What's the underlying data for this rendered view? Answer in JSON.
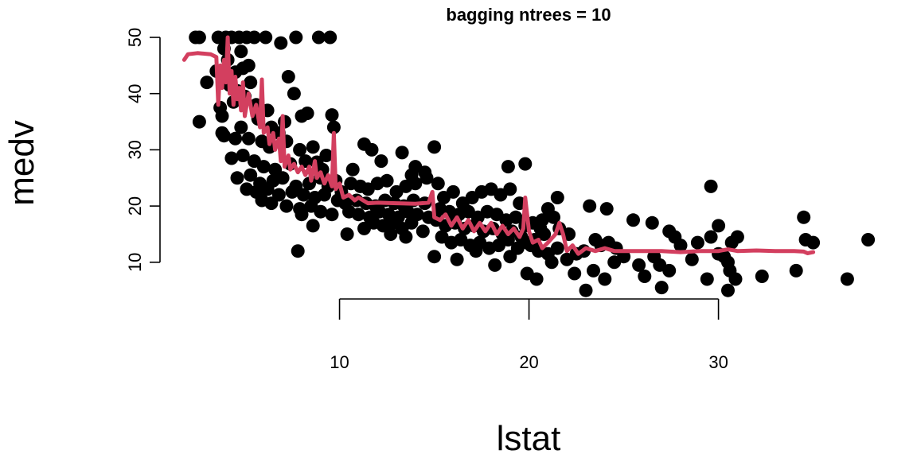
{
  "chart_data": {
    "type": "scatter",
    "title": "bagging ntrees =  10",
    "xlabel": "lstat",
    "ylabel": "medv",
    "xlim": [
      1.7,
      38
    ],
    "ylim": [
      4.6,
      50
    ],
    "x_ticks": [
      10,
      20,
      30
    ],
    "y_ticks": [
      10,
      20,
      30,
      40,
      50
    ],
    "grid": false,
    "legend": "none",
    "point_color": "#000000",
    "line_color": "#d33f5f",
    "points": [
      [
        2.4,
        50
      ],
      [
        2.6,
        50
      ],
      [
        3.6,
        50
      ],
      [
        4.0,
        50
      ],
      [
        4.3,
        50
      ],
      [
        4.7,
        50
      ],
      [
        5.1,
        50
      ],
      [
        5.5,
        50
      ],
      [
        6.1,
        50
      ],
      [
        7.7,
        50
      ],
      [
        8.9,
        50
      ],
      [
        9.5,
        50
      ],
      [
        3.9,
        48
      ],
      [
        4.8,
        47.5
      ],
      [
        4.1,
        46
      ],
      [
        5.2,
        45
      ],
      [
        6.9,
        49
      ],
      [
        3.5,
        44
      ],
      [
        4.5,
        43.8
      ],
      [
        4.9,
        44.5
      ],
      [
        5.3,
        42
      ],
      [
        7.3,
        43
      ],
      [
        3.0,
        42
      ],
      [
        4.2,
        41.5
      ],
      [
        4.6,
        40.5
      ],
      [
        5.0,
        39.5
      ],
      [
        3.7,
        37.5
      ],
      [
        4.4,
        38.5
      ],
      [
        5.6,
        38
      ],
      [
        6.2,
        37
      ],
      [
        7.6,
        40
      ],
      [
        8.0,
        36
      ],
      [
        8.3,
        36.5
      ],
      [
        2.6,
        35
      ],
      [
        3.8,
        36
      ],
      [
        4.8,
        34
      ],
      [
        5.7,
        35.5
      ],
      [
        6.4,
        34
      ],
      [
        6.8,
        33
      ],
      [
        7.1,
        35
      ],
      [
        9.6,
        36.2
      ],
      [
        9.7,
        34
      ],
      [
        3.8,
        33
      ],
      [
        4.5,
        32
      ],
      [
        5.2,
        32
      ],
      [
        5.9,
        31.5
      ],
      [
        6.3,
        30.5
      ],
      [
        7.2,
        31.5
      ],
      [
        7.9,
        30
      ],
      [
        8.6,
        30.5
      ],
      [
        9.3,
        29
      ],
      [
        3.9,
        32.5
      ],
      [
        4.3,
        28.5
      ],
      [
        4.9,
        29
      ],
      [
        5.5,
        28
      ],
      [
        6.0,
        27
      ],
      [
        6.6,
        26.5
      ],
      [
        7.4,
        27.5
      ],
      [
        8.2,
        28
      ],
      [
        8.8,
        27.8
      ],
      [
        9.1,
        26.5
      ],
      [
        4.6,
        25
      ],
      [
        5.3,
        25.5
      ],
      [
        5.8,
        24
      ],
      [
        6.5,
        24.5
      ],
      [
        7.0,
        25
      ],
      [
        7.7,
        23.5
      ],
      [
        8.4,
        24
      ],
      [
        9.0,
        25
      ],
      [
        9.4,
        23.5
      ],
      [
        9.8,
        24.5
      ],
      [
        5.1,
        23
      ],
      [
        5.6,
        22.5
      ],
      [
        6.2,
        23
      ],
      [
        6.8,
        22
      ],
      [
        7.5,
        22.5
      ],
      [
        8.1,
        22
      ],
      [
        8.7,
        21.5
      ],
      [
        9.2,
        22
      ],
      [
        9.9,
        21
      ],
      [
        5.9,
        21
      ],
      [
        6.4,
        20.5
      ],
      [
        7.2,
        20
      ],
      [
        7.9,
        19.5
      ],
      [
        8.5,
        20
      ],
      [
        9.0,
        19
      ],
      [
        9.6,
        18.5
      ],
      [
        8.0,
        18.5
      ],
      [
        8.6,
        16.5
      ],
      [
        7.8,
        12
      ],
      [
        10.1,
        22.5
      ],
      [
        10.6,
        24
      ],
      [
        11.1,
        23.5
      ],
      [
        11.5,
        23
      ],
      [
        12.0,
        24
      ],
      [
        12.5,
        24.5
      ],
      [
        13.0,
        22.5
      ],
      [
        13.5,
        23.5
      ],
      [
        14.0,
        24
      ],
      [
        14.6,
        25
      ],
      [
        10.3,
        20.5
      ],
      [
        10.9,
        21
      ],
      [
        11.4,
        20.5
      ],
      [
        11.9,
        20
      ],
      [
        12.4,
        21
      ],
      [
        12.9,
        20.5
      ],
      [
        13.4,
        20
      ],
      [
        13.9,
        21
      ],
      [
        14.5,
        20.5
      ],
      [
        10.5,
        19
      ],
      [
        11.0,
        18.5
      ],
      [
        11.6,
        18
      ],
      [
        12.1,
        19
      ],
      [
        12.6,
        18.5
      ],
      [
        13.1,
        18
      ],
      [
        13.6,
        19
      ],
      [
        14.1,
        18.5
      ],
      [
        14.7,
        18
      ],
      [
        10.4,
        15
      ],
      [
        11.3,
        16
      ],
      [
        11.8,
        17
      ],
      [
        12.3,
        16.5
      ],
      [
        12.8,
        17
      ],
      [
        13.3,
        16
      ],
      [
        13.8,
        17
      ],
      [
        14.4,
        15.5
      ],
      [
        12.7,
        15
      ],
      [
        13.5,
        14.5
      ],
      [
        11.3,
        31
      ],
      [
        11.7,
        30
      ],
      [
        12.2,
        28
      ],
      [
        13.3,
        29.5
      ],
      [
        14.0,
        27
      ],
      [
        14.5,
        26
      ],
      [
        15.0,
        30.5
      ],
      [
        10.7,
        26.5
      ],
      [
        13.8,
        25.5
      ],
      [
        15.2,
        24
      ],
      [
        15.5,
        21.5
      ],
      [
        16.0,
        22.5
      ],
      [
        16.5,
        20.5
      ],
      [
        17.0,
        21.5
      ],
      [
        17.5,
        22.5
      ],
      [
        18.0,
        23
      ],
      [
        18.5,
        22
      ],
      [
        19.0,
        23
      ],
      [
        19.5,
        20.5
      ],
      [
        15.3,
        19.5
      ],
      [
        15.8,
        19
      ],
      [
        16.3,
        18.5
      ],
      [
        16.8,
        19
      ],
      [
        17.3,
        18
      ],
      [
        17.8,
        19
      ],
      [
        18.3,
        18.5
      ],
      [
        18.8,
        17.5
      ],
      [
        19.3,
        18
      ],
      [
        19.8,
        16.5
      ],
      [
        15.1,
        17.5
      ],
      [
        15.6,
        16.5
      ],
      [
        16.1,
        17
      ],
      [
        16.6,
        16
      ],
      [
        17.1,
        16.5
      ],
      [
        17.6,
        15.5
      ],
      [
        18.1,
        16
      ],
      [
        18.6,
        15
      ],
      [
        19.1,
        15.5
      ],
      [
        19.6,
        14.5
      ],
      [
        15.4,
        14.5
      ],
      [
        15.9,
        13.5
      ],
      [
        16.4,
        14
      ],
      [
        16.9,
        13
      ],
      [
        17.4,
        13.5
      ],
      [
        17.9,
        12.5
      ],
      [
        18.4,
        13
      ],
      [
        18.9,
        14
      ],
      [
        19.4,
        12.5
      ],
      [
        19.9,
        13.5
      ],
      [
        15.0,
        11
      ],
      [
        16.2,
        10.5
      ],
      [
        17.2,
        12
      ],
      [
        18.2,
        9.5
      ],
      [
        19.0,
        11
      ],
      [
        19.9,
        8
      ],
      [
        20.4,
        7
      ],
      [
        18.9,
        27
      ],
      [
        19.8,
        27.5
      ],
      [
        21.5,
        21.5
      ],
      [
        20.7,
        17.5
      ],
      [
        20.2,
        17
      ],
      [
        20.6,
        16
      ],
      [
        21.0,
        19.5
      ],
      [
        21.3,
        18
      ],
      [
        21.6,
        16
      ],
      [
        22.1,
        15
      ],
      [
        20.3,
        14
      ],
      [
        20.8,
        15
      ],
      [
        20.1,
        13
      ],
      [
        20.5,
        12
      ],
      [
        21.0,
        11.5
      ],
      [
        21.5,
        12.5
      ],
      [
        22.0,
        10.5
      ],
      [
        22.5,
        11.5
      ],
      [
        22.9,
        12
      ],
      [
        21.2,
        10
      ],
      [
        22.4,
        8
      ],
      [
        23.0,
        5
      ],
      [
        23.4,
        8.5
      ],
      [
        23.2,
        20
      ],
      [
        24.1,
        19.5
      ],
      [
        24.0,
        7
      ],
      [
        24.5,
        10
      ],
      [
        23.8,
        13
      ],
      [
        23.5,
        14
      ],
      [
        24.2,
        13.5
      ],
      [
        24.6,
        12.5
      ],
      [
        25.0,
        11
      ],
      [
        25.5,
        17.5
      ],
      [
        26.5,
        17
      ],
      [
        25.8,
        9.5
      ],
      [
        26.1,
        7.5
      ],
      [
        26.6,
        11
      ],
      [
        26.9,
        9.5
      ],
      [
        27.0,
        5.5
      ],
      [
        27.4,
        8.5
      ],
      [
        27.7,
        14.5
      ],
      [
        28.0,
        13
      ],
      [
        28.6,
        10.5
      ],
      [
        28.9,
        13.5
      ],
      [
        27.4,
        15.5
      ],
      [
        29.6,
        23.5
      ],
      [
        29.4,
        7
      ],
      [
        29.6,
        14.5
      ],
      [
        30.0,
        16.5
      ],
      [
        30.3,
        11
      ],
      [
        30.7,
        13.5
      ],
      [
        30.0,
        11.5
      ],
      [
        30.5,
        10
      ],
      [
        30.6,
        8.5
      ],
      [
        30.9,
        7
      ],
      [
        30.5,
        5
      ],
      [
        31.0,
        14.5
      ],
      [
        32.3,
        7.5
      ],
      [
        34.1,
        8.5
      ],
      [
        34.5,
        18
      ],
      [
        34.6,
        14
      ],
      [
        35.0,
        13.5
      ],
      [
        36.8,
        7
      ],
      [
        37.9,
        14
      ]
    ],
    "fitted_line": [
      [
        1.8,
        46
      ],
      [
        2.0,
        47
      ],
      [
        2.5,
        47.2
      ],
      [
        3.2,
        47
      ],
      [
        3.5,
        46.5
      ],
      [
        3.6,
        38
      ],
      [
        3.7,
        45
      ],
      [
        3.8,
        41
      ],
      [
        3.9,
        46
      ],
      [
        4.0,
        42
      ],
      [
        4.1,
        50
      ],
      [
        4.2,
        40
      ],
      [
        4.3,
        44
      ],
      [
        4.4,
        38
      ],
      [
        4.5,
        43
      ],
      [
        4.6,
        39
      ],
      [
        4.7,
        41
      ],
      [
        4.8,
        37
      ],
      [
        4.9,
        42
      ],
      [
        5.0,
        36
      ],
      [
        5.2,
        40
      ],
      [
        5.4,
        36
      ],
      [
        5.6,
        38
      ],
      [
        5.8,
        34
      ],
      [
        5.9,
        42.5
      ],
      [
        6.0,
        33
      ],
      [
        6.2,
        34
      ],
      [
        6.3,
        31
      ],
      [
        6.5,
        33
      ],
      [
        6.6,
        30
      ],
      [
        6.8,
        32
      ],
      [
        6.9,
        28
      ],
      [
        7.0,
        36
      ],
      [
        7.1,
        27
      ],
      [
        7.3,
        29
      ],
      [
        7.4,
        26.5
      ],
      [
        7.6,
        27.5
      ],
      [
        7.8,
        26
      ],
      [
        8.0,
        27
      ],
      [
        8.2,
        25.5
      ],
      [
        8.4,
        27
      ],
      [
        8.5,
        24.5
      ],
      [
        8.7,
        28
      ],
      [
        8.8,
        25
      ],
      [
        9.0,
        26
      ],
      [
        9.2,
        24
      ],
      [
        9.4,
        25.5
      ],
      [
        9.6,
        23.5
      ],
      [
        9.7,
        33
      ],
      [
        9.8,
        23
      ],
      [
        10.0,
        24
      ],
      [
        10.2,
        21.5
      ],
      [
        10.5,
        22
      ],
      [
        10.8,
        21
      ],
      [
        11.0,
        21.5
      ],
      [
        11.5,
        20.5
      ],
      [
        12.0,
        20.6
      ],
      [
        13.0,
        20.5
      ],
      [
        14.0,
        20.4
      ],
      [
        14.7,
        20.6
      ],
      [
        14.9,
        22.5
      ],
      [
        15.0,
        18
      ],
      [
        15.3,
        17.5
      ],
      [
        15.6,
        18.5
      ],
      [
        15.9,
        16.5
      ],
      [
        16.2,
        18
      ],
      [
        16.5,
        16
      ],
      [
        16.8,
        17.5
      ],
      [
        17.1,
        15.5
      ],
      [
        17.4,
        17
      ],
      [
        17.7,
        15.5
      ],
      [
        18.0,
        17
      ],
      [
        18.3,
        15
      ],
      [
        18.6,
        16.5
      ],
      [
        18.9,
        15
      ],
      [
        19.2,
        16
      ],
      [
        19.5,
        14.5
      ],
      [
        19.7,
        16
      ],
      [
        19.8,
        21.5
      ],
      [
        20.0,
        15.5
      ],
      [
        20.2,
        13.5
      ],
      [
        20.5,
        14
      ],
      [
        20.7,
        12.5
      ],
      [
        21.0,
        13.5
      ],
      [
        21.4,
        15
      ],
      [
        21.6,
        17
      ],
      [
        21.8,
        15
      ],
      [
        22.0,
        12
      ],
      [
        22.3,
        13
      ],
      [
        22.6,
        11.5
      ],
      [
        23.0,
        12.5
      ],
      [
        23.5,
        12
      ],
      [
        24.0,
        12.5
      ],
      [
        24.5,
        12
      ],
      [
        25.0,
        12
      ],
      [
        26.0,
        12
      ],
      [
        27.0,
        12
      ],
      [
        28.0,
        11.8
      ],
      [
        29.0,
        12
      ],
      [
        30.0,
        12
      ],
      [
        30.5,
        12.3
      ],
      [
        31.0,
        12
      ],
      [
        32.0,
        12.1
      ],
      [
        33.0,
        12
      ],
      [
        34.0,
        12
      ],
      [
        34.5,
        11.9
      ],
      [
        34.7,
        11.6
      ],
      [
        35.0,
        11.8
      ]
    ]
  }
}
